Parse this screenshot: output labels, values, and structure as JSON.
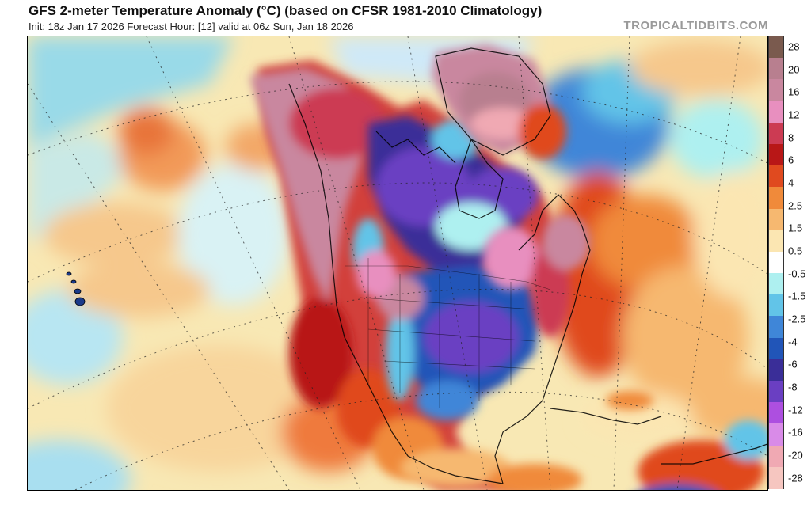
{
  "header": {
    "title": "GFS 2-meter Temperature Anomaly (°C) (based on CFSR 1981-2010 Climatology)",
    "subtitle": "Init: 18z Jan 17 2026   Forecast Hour: [12]   valid at 06z Sun, Jan 18 2026",
    "brand": "TROPICALTIDBITS.COM"
  },
  "colorbar": {
    "labels": [
      "28",
      "20",
      "16",
      "12",
      "8",
      "6",
      "4",
      "2.5",
      "1.5",
      "0.5",
      "-0.5",
      "-1.5",
      "-2.5",
      "-4",
      "-6",
      "-8",
      "-12",
      "-16",
      "-20",
      "-28"
    ],
    "colors": [
      "#7a5a4e",
      "#b87f8f",
      "#c9879f",
      "#e88fbf",
      "#cc3b53",
      "#b81717",
      "#e04a1f",
      "#f08a3a",
      "#f6b870",
      "#fbe6b2",
      "#ffffff",
      "#aef0f0",
      "#62c4e8",
      "#3f86d8",
      "#2155b8",
      "#3a2e98",
      "#6a3fc2",
      "#ad4fe0",
      "#d98be8",
      "#f0a9b3",
      "#f6c6c0"
    ]
  }
}
